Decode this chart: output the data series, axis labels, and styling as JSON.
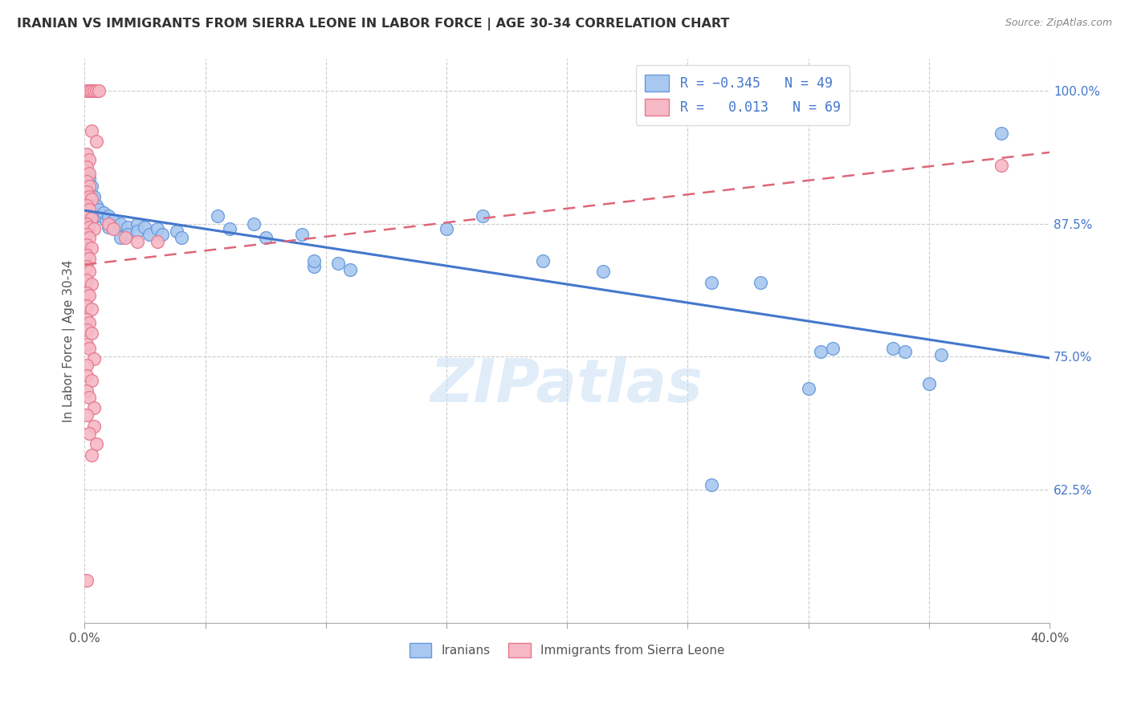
{
  "title": "IRANIAN VS IMMIGRANTS FROM SIERRA LEONE IN LABOR FORCE | AGE 30-34 CORRELATION CHART",
  "source": "Source: ZipAtlas.com",
  "ylabel": "In Labor Force | Age 30-34",
  "legend_label_blue": "Iranians",
  "legend_label_pink": "Immigrants from Sierra Leone",
  "watermark": "ZIPatlas",
  "blue_color": "#a8c8f0",
  "pink_color": "#f5b8c4",
  "blue_edge_color": "#6699dd",
  "pink_edge_color": "#e87890",
  "blue_line_color": "#4477cc",
  "pink_line_color": "#dd6677",
  "background_color": "#ffffff",
  "grid_color": "#cccccc",
  "blue_scatter": [
    [
      0.001,
      0.92
    ],
    [
      0.001,
      0.908
    ],
    [
      0.001,
      0.895
    ],
    [
      0.001,
      0.89
    ],
    [
      0.002,
      0.918
    ],
    [
      0.002,
      0.905
    ],
    [
      0.002,
      0.895
    ],
    [
      0.002,
      0.885
    ],
    [
      0.002,
      0.878
    ],
    [
      0.003,
      0.91
    ],
    [
      0.003,
      0.9
    ],
    [
      0.003,
      0.888
    ],
    [
      0.004,
      0.9
    ],
    [
      0.004,
      0.89
    ],
    [
      0.005,
      0.892
    ],
    [
      0.005,
      0.882
    ],
    [
      0.006,
      0.888
    ],
    [
      0.007,
      0.882
    ],
    [
      0.008,
      0.885
    ],
    [
      0.009,
      0.878
    ],
    [
      0.01,
      0.882
    ],
    [
      0.01,
      0.872
    ],
    [
      0.012,
      0.878
    ],
    [
      0.013,
      0.87
    ],
    [
      0.015,
      0.875
    ],
    [
      0.015,
      0.862
    ],
    [
      0.018,
      0.872
    ],
    [
      0.018,
      0.865
    ],
    [
      0.022,
      0.875
    ],
    [
      0.022,
      0.868
    ],
    [
      0.025,
      0.872
    ],
    [
      0.027,
      0.865
    ],
    [
      0.03,
      0.87
    ],
    [
      0.032,
      0.865
    ],
    [
      0.038,
      0.868
    ],
    [
      0.04,
      0.862
    ],
    [
      0.055,
      0.882
    ],
    [
      0.06,
      0.87
    ],
    [
      0.07,
      0.875
    ],
    [
      0.075,
      0.862
    ],
    [
      0.09,
      0.865
    ],
    [
      0.095,
      0.835
    ],
    [
      0.095,
      0.84
    ],
    [
      0.105,
      0.838
    ],
    [
      0.11,
      0.832
    ],
    [
      0.15,
      0.87
    ],
    [
      0.165,
      0.882
    ],
    [
      0.19,
      0.84
    ],
    [
      0.215,
      0.83
    ],
    [
      0.26,
      0.82
    ],
    [
      0.28,
      0.82
    ],
    [
      0.305,
      0.755
    ],
    [
      0.31,
      0.758
    ],
    [
      0.335,
      0.758
    ],
    [
      0.34,
      0.755
    ],
    [
      0.355,
      0.752
    ],
    [
      0.38,
      0.96
    ],
    [
      0.35,
      0.725
    ],
    [
      0.3,
      0.72
    ],
    [
      0.26,
      0.63
    ]
  ],
  "pink_scatter": [
    [
      0.001,
      1.0
    ],
    [
      0.002,
      1.0
    ],
    [
      0.003,
      1.0
    ],
    [
      0.004,
      1.0
    ],
    [
      0.005,
      1.0
    ],
    [
      0.006,
      1.0
    ],
    [
      0.003,
      0.962
    ],
    [
      0.005,
      0.952
    ],
    [
      0.001,
      0.94
    ],
    [
      0.002,
      0.935
    ],
    [
      0.001,
      0.928
    ],
    [
      0.002,
      0.922
    ],
    [
      0.001,
      0.915
    ],
    [
      0.002,
      0.91
    ],
    [
      0.001,
      0.905
    ],
    [
      0.002,
      0.9
    ],
    [
      0.003,
      0.898
    ],
    [
      0.001,
      0.892
    ],
    [
      0.002,
      0.888
    ],
    [
      0.001,
      0.882
    ],
    [
      0.003,
      0.88
    ],
    [
      0.001,
      0.875
    ],
    [
      0.002,
      0.872
    ],
    [
      0.004,
      0.87
    ],
    [
      0.001,
      0.865
    ],
    [
      0.002,
      0.862
    ],
    [
      0.001,
      0.855
    ],
    [
      0.003,
      0.852
    ],
    [
      0.001,
      0.845
    ],
    [
      0.002,
      0.842
    ],
    [
      0.001,
      0.835
    ],
    [
      0.002,
      0.83
    ],
    [
      0.001,
      0.822
    ],
    [
      0.003,
      0.818
    ],
    [
      0.001,
      0.81
    ],
    [
      0.002,
      0.808
    ],
    [
      0.001,
      0.798
    ],
    [
      0.003,
      0.795
    ],
    [
      0.001,
      0.785
    ],
    [
      0.002,
      0.782
    ],
    [
      0.001,
      0.775
    ],
    [
      0.003,
      0.772
    ],
    [
      0.001,
      0.762
    ],
    [
      0.002,
      0.758
    ],
    [
      0.004,
      0.748
    ],
    [
      0.001,
      0.742
    ],
    [
      0.001,
      0.732
    ],
    [
      0.003,
      0.728
    ],
    [
      0.001,
      0.718
    ],
    [
      0.002,
      0.712
    ],
    [
      0.004,
      0.702
    ],
    [
      0.001,
      0.695
    ],
    [
      0.004,
      0.685
    ],
    [
      0.002,
      0.678
    ],
    [
      0.005,
      0.668
    ],
    [
      0.003,
      0.658
    ],
    [
      0.01,
      0.875
    ],
    [
      0.012,
      0.87
    ],
    [
      0.017,
      0.862
    ],
    [
      0.022,
      0.858
    ],
    [
      0.03,
      0.858
    ],
    [
      0.001,
      0.54
    ],
    [
      0.38,
      0.93
    ]
  ],
  "xlim": [
    0.0,
    0.4
  ],
  "ylim": [
    0.5,
    1.03
  ],
  "yticks": [
    0.625,
    0.75,
    0.875,
    1.0
  ],
  "ytick_labels": [
    "62.5%",
    "75.0%",
    "87.5%",
    "100.0%"
  ],
  "xticks": [
    0.0,
    0.05,
    0.1,
    0.15,
    0.2,
    0.25,
    0.3,
    0.35,
    0.4
  ],
  "xtick_labels_show": {
    "0.0": "0.0%",
    "0.40": "40.0%"
  }
}
